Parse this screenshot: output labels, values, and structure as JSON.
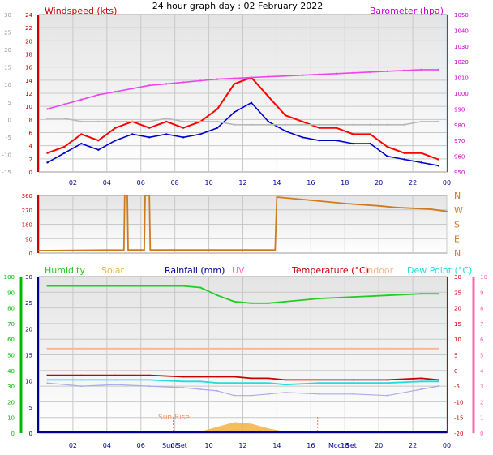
{
  "title": "24 hour graph day : 02 February 2022",
  "colors": {
    "wind": "#ff0000",
    "avg": "#0000cc",
    "gust_grey": "#b8b8b8",
    "baro": "#ee44ee",
    "dir": "#d07a20",
    "humidity": "#22cc22",
    "solar": "#f3b242",
    "rain": "#000099",
    "uv": "#ff66cc",
    "temp": "#cc0000",
    "indoor": "#ffb090",
    "dew": "#22dddd",
    "chill": "#aaaaee",
    "grid": "#c8c8c8",
    "axis_left": "#cc0000",
    "axis_right": "#cc00cc",
    "axis_green": "#00bb00",
    "axis_pink": "#ff66aa",
    "xtick": "#000099"
  },
  "x_ticks": [
    "02",
    "04",
    "06",
    "08",
    "10",
    "12",
    "14",
    "16",
    "18",
    "20",
    "22",
    "00"
  ],
  "chart_data": [
    {
      "type": "line",
      "name": "wind-barometer",
      "labels": {
        "left": "Windspeed (kts)",
        "right": "Barometer (hpa)"
      },
      "left_ticks": [
        "0",
        "2",
        "4",
        "6",
        "8",
        "10",
        "12",
        "14",
        "16",
        "18",
        "20",
        "22",
        "24"
      ],
      "grey_ticks": [
        "-15",
        "-10",
        "-5",
        "0",
        "5",
        "10",
        "15",
        "20",
        "25",
        "30"
      ],
      "right_ticks": [
        "950",
        "960",
        "970",
        "980",
        "990",
        "1000",
        "1010",
        "1020",
        "1030",
        "1040",
        "1050"
      ],
      "ylim_left": [
        0,
        25
      ],
      "ylim_right": [
        950,
        1050
      ],
      "x": [
        0.5,
        1.5,
        2.5,
        3.5,
        4.5,
        5.5,
        6.5,
        7.5,
        8.5,
        9.5,
        10.5,
        11.5,
        12.5,
        13.5,
        14.5,
        15.5,
        16.5,
        17.5,
        18.5,
        19.5,
        20.5,
        21.5,
        22.5,
        23.5
      ],
      "series": [
        {
          "key": "wind",
          "axis": "left",
          "values": [
            3,
            4,
            6,
            5,
            7,
            8,
            7,
            8,
            7,
            8,
            10,
            14,
            15,
            12,
            9,
            8,
            7,
            7,
            6,
            6,
            4,
            3,
            3,
            2
          ]
        },
        {
          "key": "avg",
          "axis": "left",
          "values": [
            1.5,
            3,
            4.5,
            3.5,
            5,
            6,
            5.5,
            6,
            5.5,
            6,
            7,
            9.5,
            11,
            8,
            6.5,
            5.5,
            5,
            5,
            4.5,
            4.5,
            2.5,
            2,
            1.5,
            1
          ]
        },
        {
          "key": "gust_grey",
          "axis": "left",
          "values": [
            8.5,
            8.5,
            8,
            8,
            8,
            8,
            8,
            8.5,
            8,
            8,
            8,
            7.5,
            7.5,
            7.5,
            7.5,
            7.5,
            7.5,
            7.5,
            7.5,
            7.5,
            7.5,
            7.5,
            8,
            8
          ]
        },
        {
          "key": "baro",
          "axis": "right",
          "values": [
            990,
            993,
            996,
            999,
            1001,
            1003,
            1005,
            1006,
            1007,
            1008,
            1009,
            1009.5,
            1010,
            1010.5,
            1011,
            1011.5,
            1012,
            1012.5,
            1013,
            1013.5,
            1014,
            1014.5,
            1015,
            1015
          ]
        }
      ]
    },
    {
      "type": "line",
      "name": "wind-direction",
      "left_ticks": [
        "0",
        "90",
        "180",
        "270",
        "360"
      ],
      "right_ticks": [
        "N",
        "E",
        "S",
        "W",
        "N"
      ],
      "ylim": [
        0,
        360
      ],
      "x": [
        0,
        5,
        5.05,
        5.2,
        5.25,
        6.2,
        6.25,
        6.5,
        6.55,
        13.9,
        14,
        16,
        18,
        20,
        21,
        22,
        23,
        24
      ],
      "values": [
        15,
        20,
        360,
        360,
        20,
        20,
        360,
        360,
        20,
        20,
        350,
        330,
        310,
        295,
        285,
        280,
        275,
        260
      ]
    },
    {
      "type": "line",
      "name": "temperature-humidity",
      "labels": [
        "Humidity",
        "Solar",
        "Rainfall (mm)",
        "UV",
        "Temperature (°C)",
        "Indoor",
        "Dew Point (°C)"
      ],
      "hum_ticks": [
        "0",
        "10",
        "20",
        "30",
        "40",
        "50",
        "60",
        "70",
        "80",
        "90",
        "100"
      ],
      "rain_ticks": [
        "0",
        "5",
        "10",
        "15",
        "20",
        "25",
        "30"
      ],
      "temp_ticks": [
        "-20",
        "-15",
        "-10",
        "-5",
        "0",
        "5",
        "10",
        "15",
        "20",
        "25",
        "30"
      ],
      "uv_ticks": [
        "0",
        "1",
        "2",
        "3",
        "4",
        "5",
        "6",
        "7",
        "8",
        "9",
        "10"
      ],
      "ylim_temp": [
        -20,
        30
      ],
      "ylim_hum": [
        0,
        100
      ],
      "sun_labels": {
        "rise": "Sun Rise",
        "set": "Sun Set",
        "moon": "MoonSet"
      },
      "x": [
        0.5,
        2.5,
        4.5,
        6.5,
        8.5,
        9.5,
        10.5,
        11.5,
        12.5,
        13.5,
        14.5,
        16.5,
        18.5,
        20.5,
        22.5,
        23.5
      ],
      "series": [
        {
          "key": "humidity",
          "axis": "hum",
          "values": [
            94,
            94,
            94,
            94,
            94,
            93,
            88,
            84,
            83,
            83,
            84,
            86,
            87,
            88,
            89,
            89
          ]
        },
        {
          "key": "temp",
          "axis": "temp",
          "values": [
            -1.5,
            -1.5,
            -1.5,
            -1.5,
            -2,
            -2,
            -2,
            -2,
            -2.5,
            -2.5,
            -3,
            -3,
            -3,
            -3,
            -2.5,
            -3
          ]
        },
        {
          "key": "indoor",
          "axis": "temp",
          "values": [
            7,
            7,
            7,
            7,
            7,
            7,
            7,
            7,
            7,
            7,
            7,
            7,
            7,
            7,
            7,
            7
          ]
        },
        {
          "key": "dew",
          "axis": "temp",
          "values": [
            -3,
            -3,
            -3,
            -3,
            -3.5,
            -3.5,
            -4,
            -4,
            -4,
            -4,
            -4.5,
            -4,
            -4,
            -4,
            -3.5,
            -3.5
          ]
        },
        {
          "key": "chill",
          "axis": "temp",
          "values": [
            -4,
            -5,
            -4.5,
            -5,
            -5.5,
            -6,
            -6.5,
            -8,
            -8,
            -7.5,
            -7,
            -7.5,
            -7.5,
            -8,
            -6,
            -5
          ]
        },
        {
          "key": "solar",
          "axis": "hum",
          "values": [
            0,
            0,
            0,
            0,
            0,
            1,
            4,
            7,
            6,
            3,
            1,
            0,
            0,
            0,
            0,
            0
          ]
        }
      ]
    }
  ]
}
